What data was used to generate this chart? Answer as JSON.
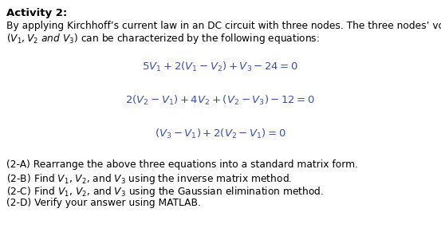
{
  "title": "Activity 2:",
  "intro_line1": "By applying Kirchhoff’s current law in an DC circuit with three nodes. The three nodes’ voltages",
  "intro_line2_plain": "can be characterized by the following equations:",
  "intro_line2_math": "$(V_1, V_2$",
  "eq1": "$5V_1 + 2(V_1 - V_2) + V_3 - 24 = 0$",
  "eq2": "$2(V_2 - V_1) + 4V_2 + (V_2 - V_3) - 12 = 0$",
  "eq3": "$(V_3 - V_1) + 2(V_2 - V_1) = 0$",
  "item_a": "(2-A) Rearrange the above three equations into a standard matrix form.",
  "item_b_pre": "(2-B) Find ",
  "item_b_vars": "V₁, V₂, and V₃",
  "item_b_post": " using the inverse matrix method.",
  "item_c_pre": "(2-C) Find ",
  "item_c_vars": "V₁, V₂, and V₃",
  "item_c_post": " using the Gaussian elimination method.",
  "item_d": "(2-D) Verify your answer using MATLAB.",
  "eq_color": "#3a4fa0",
  "bg_color": "#ffffff",
  "text_color": "#000000",
  "fontsize_title": 9.5,
  "fontsize_body": 8.8,
  "fontsize_eq": 9.5
}
